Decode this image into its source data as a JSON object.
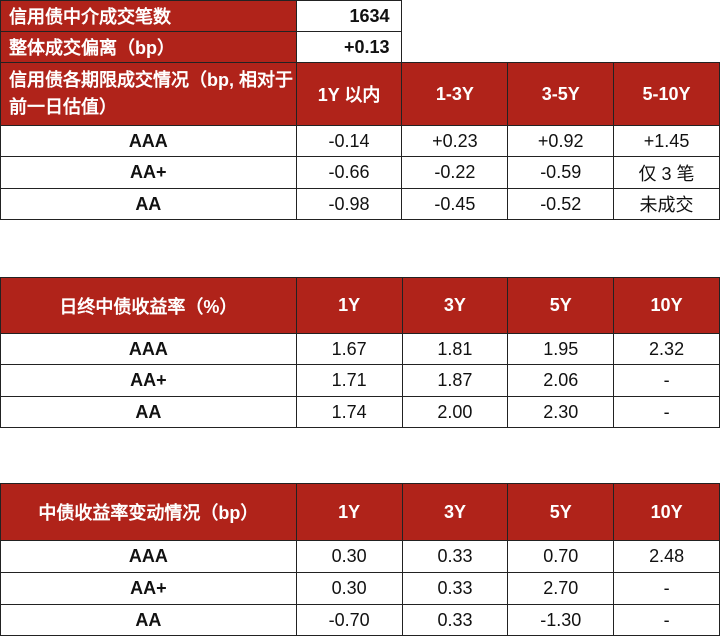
{
  "summary": {
    "count_label": "信用债中介成交笔数",
    "count_value": "1634",
    "deviation_label": "整体成交偏离（bp）",
    "deviation_value": "+0.13"
  },
  "table1": {
    "header": [
      "信用债各期限成交情况（bp, 相对于前一日估值）",
      "1Y 以内",
      "1-3Y",
      "3-5Y",
      "5-10Y"
    ],
    "rows": [
      [
        "AAA",
        "-0.14",
        "+0.23",
        "+0.92",
        "+1.45"
      ],
      [
        "AA+",
        "-0.66",
        "-0.22",
        "-0.59",
        "仅 3 笔"
      ],
      [
        "AA",
        "-0.98",
        "-0.45",
        "-0.52",
        "未成交"
      ]
    ]
  },
  "table2": {
    "header": [
      "日终中债收益率（%）",
      "1Y",
      "3Y",
      "5Y",
      "10Y"
    ],
    "rows": [
      [
        "AAA",
        "1.67",
        "1.81",
        "1.95",
        "2.32"
      ],
      [
        "AA+",
        "1.71",
        "1.87",
        "2.06",
        "-"
      ],
      [
        "AA",
        "1.74",
        "2.00",
        "2.30",
        "-"
      ]
    ]
  },
  "table3": {
    "header": [
      "中债收益率变动情况（bp）",
      "1Y",
      "3Y",
      "5Y",
      "10Y"
    ],
    "rows": [
      [
        "AAA",
        "0.30",
        "0.33",
        "0.70",
        "2.48"
      ],
      [
        "AA+",
        "0.30",
        "0.33",
        "2.70",
        "-"
      ],
      [
        "AA",
        "-0.70",
        "0.33",
        "-1.30",
        "-"
      ]
    ]
  },
  "colors": {
    "header_bg": "#b0231a",
    "header_text": "#ffffff"
  }
}
